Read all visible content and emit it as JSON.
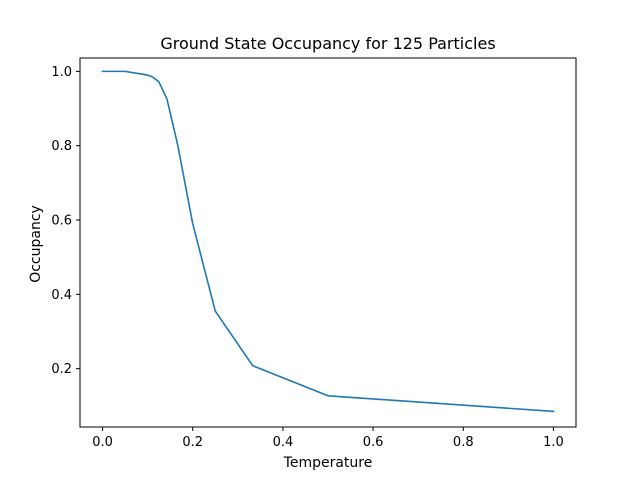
{
  "chart_data": {
    "type": "line",
    "title": "Ground State Occupancy for 125 Particles",
    "xlabel": "Temperature",
    "ylabel": "Occupancy",
    "xlim": [
      -0.05,
      1.05
    ],
    "ylim": [
      0.043,
      1.036
    ],
    "xticks": [
      0.0,
      0.2,
      0.4,
      0.6,
      0.8,
      1.0
    ],
    "xtick_labels": [
      "0.0",
      "0.2",
      "0.4",
      "0.6",
      "0.8",
      "1.0"
    ],
    "yticks": [
      0.2,
      0.4,
      0.6,
      0.8,
      1.0
    ],
    "ytick_labels": [
      "0.2",
      "0.4",
      "0.6",
      "0.8",
      "1.0"
    ],
    "grid": false,
    "legend": "none",
    "series": [
      {
        "color": "#1f77b4",
        "x": [
          0.0,
          0.05,
          0.1,
          0.111,
          0.125,
          0.143,
          0.167,
          0.2,
          0.25,
          0.333,
          0.5,
          1.0
        ],
        "y": [
          1.0,
          1.0,
          0.99,
          0.985,
          0.972,
          0.925,
          0.8,
          0.59,
          0.355,
          0.208,
          0.127,
          0.085
        ]
      }
    ]
  }
}
